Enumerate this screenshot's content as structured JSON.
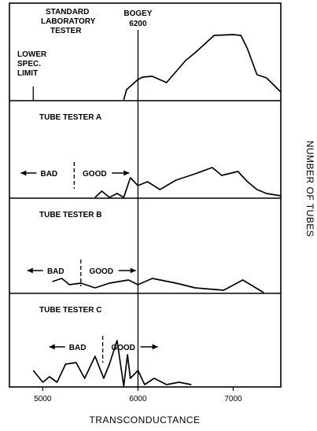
{
  "chart_data": {
    "type": "line",
    "xlabel": "TRANSCONDUCTANCE",
    "ylabel": "NUMBER OF TUBES",
    "xlim": [
      4650,
      7500
    ],
    "x_ticks": [
      5000,
      6000,
      7000
    ],
    "bogey": {
      "label_line1": "BOGEY",
      "label_line2": "6200",
      "x": 6000
    },
    "lower_spec": {
      "label_lines": [
        "LOWER",
        "SPEC.",
        "LIMIT"
      ],
      "x": 4900
    },
    "panels": [
      {
        "name": "standard",
        "title_lines": [
          "STANDARD",
          "LABORATORY",
          "TESTER"
        ],
        "x": [
          5850,
          5880,
          6000,
          6050,
          6150,
          6300,
          6500,
          6600,
          6800,
          7000,
          7080,
          7150,
          7250,
          7350,
          7500
        ],
        "y": [
          0,
          0.13,
          0.26,
          0.29,
          0.3,
          0.22,
          0.5,
          0.6,
          0.82,
          0.83,
          0.82,
          0.65,
          0.32,
          0.28,
          0.1
        ],
        "ylim": [
          0,
          1
        ]
      },
      {
        "name": "tester-a",
        "title_lines": [
          "TUBE TESTER A"
        ],
        "bad": "BAD",
        "good": "GOOD",
        "divider_x": 5330,
        "x": [
          5550,
          5620,
          5700,
          5780,
          5850,
          5920,
          6000,
          6100,
          6230,
          6400,
          6600,
          6780,
          6880,
          7050,
          7150,
          7250,
          7350,
          7500
        ],
        "y": [
          0,
          0.08,
          0,
          0.05,
          0,
          0.25,
          0.15,
          0.2,
          0.1,
          0.22,
          0.3,
          0.38,
          0.28,
          0.33,
          0.2,
          0.1,
          0.05,
          0.02
        ],
        "ylim": [
          0,
          1
        ]
      },
      {
        "name": "tester-b",
        "title_lines": [
          "TUBE TESTER B"
        ],
        "bad": "BAD",
        "good": "GOOD",
        "divider_x": 5400,
        "x": [
          5100,
          5200,
          5280,
          5400,
          5550,
          5700,
          5900,
          6000,
          6150,
          6400,
          6600,
          6900,
          7100,
          7320
        ],
        "y": [
          0.14,
          0.18,
          0.1,
          0.12,
          0.06,
          0.12,
          0.16,
          0.1,
          0.18,
          0.12,
          0.06,
          0.03,
          0.16,
          0
        ],
        "ylim": [
          0,
          1
        ]
      },
      {
        "name": "tester-c",
        "title_lines": [
          "TUBE TESTER C"
        ],
        "bad": "BAD",
        "good": "GOOD",
        "divider_x": 5630,
        "x": [
          4900,
          5000,
          5070,
          5150,
          5240,
          5350,
          5440,
          5550,
          5640,
          5700,
          5780,
          5850,
          5890,
          5920,
          6000,
          6070,
          6170,
          6300,
          6430,
          6560
        ],
        "y": [
          0.2,
          0.05,
          0.12,
          0.05,
          0.28,
          0.3,
          0.1,
          0.38,
          0.1,
          0.28,
          0.58,
          0,
          0.4,
          0.1,
          0.2,
          0.02,
          0.1,
          0.02,
          0.05,
          0.02
        ],
        "ylim": [
          0,
          1
        ]
      }
    ]
  }
}
